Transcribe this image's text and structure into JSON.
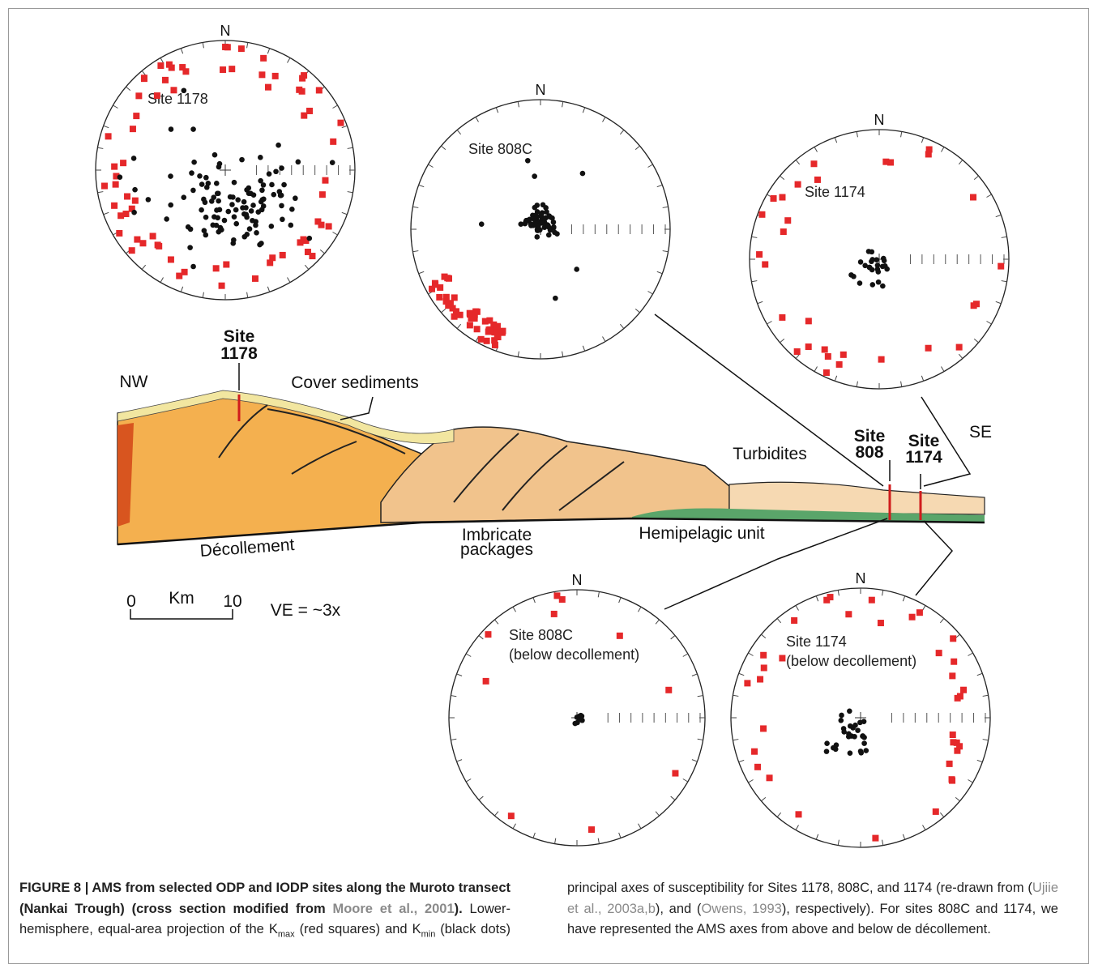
{
  "stereonets": [
    {
      "north": "N",
      "title": [
        "Site 1178"
      ]
    },
    {
      "north": "N",
      "title": [
        "Site 808C"
      ]
    },
    {
      "north": "N",
      "title": [
        "Site 1174"
      ]
    },
    {
      "north": "N",
      "title": [
        "Site 808C",
        "(below decollement)"
      ]
    },
    {
      "north": "N",
      "title": [
        "Site 1174",
        "(below decollement)"
      ]
    }
  ],
  "cross_section": {
    "nw": "NW",
    "se": "SE",
    "site_1178": [
      "Site",
      "1178"
    ],
    "site_808": [
      "Site",
      "808"
    ],
    "site_1174": [
      "Site",
      "1174"
    ],
    "cover_sediments": "Cover sediments",
    "turbidites": "Turbidites",
    "decollement": "Décollement",
    "imbricate": [
      "Imbricate",
      "packages"
    ],
    "hemipelagic": "Hemipelagic unit"
  },
  "scale": {
    "start": "0",
    "unit": "Km",
    "end": "10",
    "ve": "VE = ~3x"
  },
  "caption": {
    "bold": [
      "FIGURE 8 | AMS from selected ODP and IODP sites along the Muroto transect (Nankai Trough) (cross section modified from ",
      "Moore et al., 2001",
      ")."
    ],
    "text": [
      " Lower-hemisphere, equal-area projection of the K",
      "max",
      " (red squares) and K",
      "min",
      " (black dots) principal axes of susceptibility for Sites 1178, 808C, and 1174 (re-drawn from (",
      "Ujiie et al., 2003a,b",
      "), and (",
      "Owens, 1993",
      "), respectively). For sites 808C and 1174, we have represented the AMS axes from above and below de décollement."
    ]
  }
}
